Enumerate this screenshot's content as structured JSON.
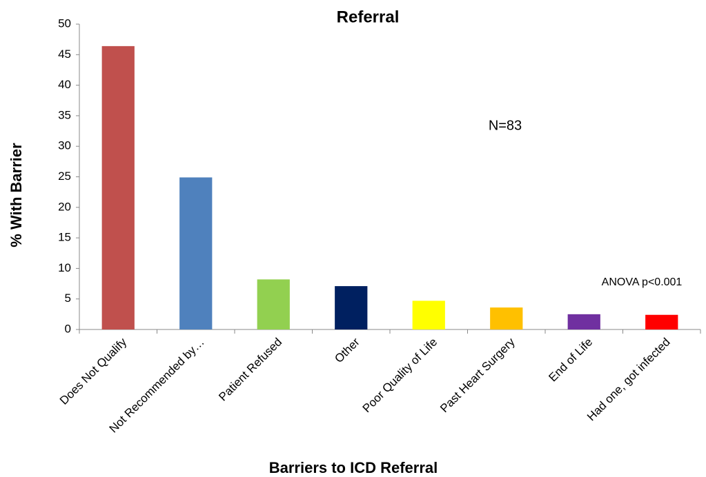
{
  "chart_data": {
    "type": "bar",
    "title": "Referral",
    "x_label": "Barriers to ICD Referral",
    "y_label": "% With Barrier",
    "annotations": [
      "N=83",
      "ANOVA p<0.001"
    ],
    "categories": [
      "Does Not Qualify",
      "Not Recommended by…",
      "Patient Refused",
      "Other",
      "Poor Quality of Life",
      "Past Heart Surgery",
      "End of Life",
      "Had one, got infected"
    ],
    "values": [
      46.4,
      24.9,
      8.2,
      7.1,
      4.7,
      3.6,
      2.5,
      2.4
    ],
    "colors": [
      "#c0504d",
      "#4f81bd",
      "#92d050",
      "#002060",
      "#ffff00",
      "#ffc000",
      "#7030a0",
      "#ff0000"
    ],
    "ylim": [
      0,
      50
    ],
    "yticks": [
      0,
      5,
      10,
      15,
      20,
      25,
      30,
      35,
      40,
      45,
      50
    ],
    "grid": false
  }
}
